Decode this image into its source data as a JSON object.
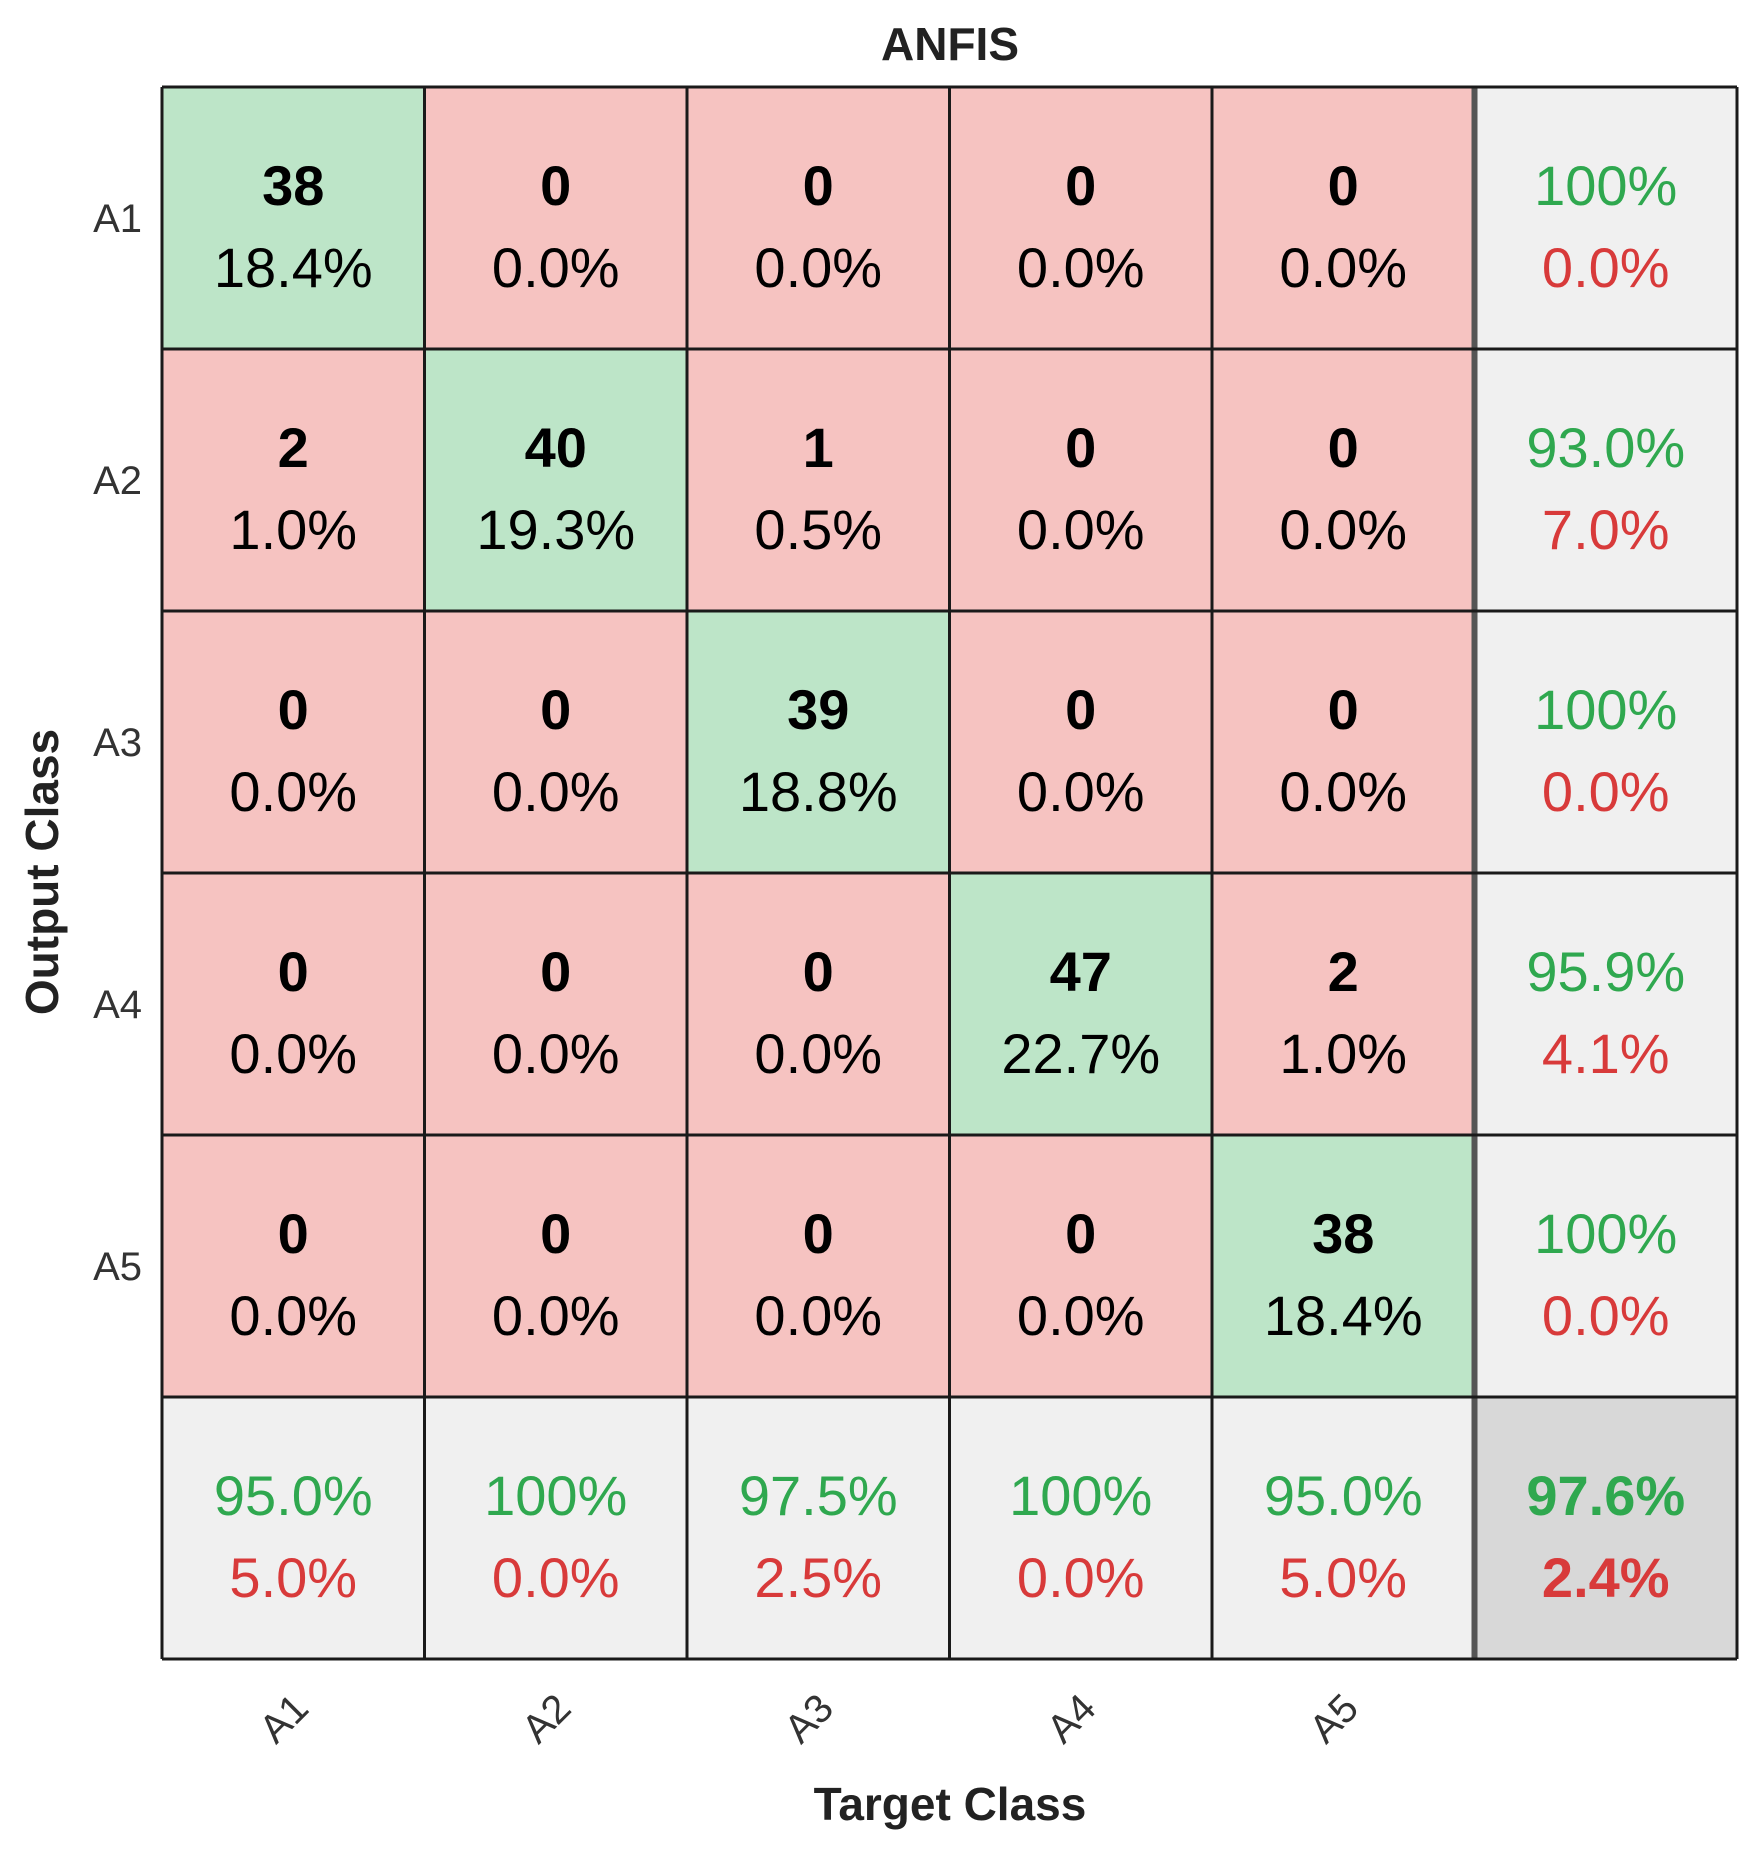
{
  "chart_data": {
    "type": "heatmap",
    "title": "ANFIS",
    "xlabel": "Target Class",
    "ylabel": "Output Class",
    "x_tick_labels": [
      "A1",
      "A2",
      "A3",
      "A4",
      "A5"
    ],
    "y_tick_labels": [
      "A1",
      "A2",
      "A3",
      "A4",
      "A5"
    ],
    "cells": [
      [
        {
          "count": "38",
          "pct": "18.4%"
        },
        {
          "count": "0",
          "pct": "0.0%"
        },
        {
          "count": "0",
          "pct": "0.0%"
        },
        {
          "count": "0",
          "pct": "0.0%"
        },
        {
          "count": "0",
          "pct": "0.0%"
        }
      ],
      [
        {
          "count": "2",
          "pct": "1.0%"
        },
        {
          "count": "40",
          "pct": "19.3%"
        },
        {
          "count": "1",
          "pct": "0.5%"
        },
        {
          "count": "0",
          "pct": "0.0%"
        },
        {
          "count": "0",
          "pct": "0.0%"
        }
      ],
      [
        {
          "count": "0",
          "pct": "0.0%"
        },
        {
          "count": "0",
          "pct": "0.0%"
        },
        {
          "count": "39",
          "pct": "18.8%"
        },
        {
          "count": "0",
          "pct": "0.0%"
        },
        {
          "count": "0",
          "pct": "0.0%"
        }
      ],
      [
        {
          "count": "0",
          "pct": "0.0%"
        },
        {
          "count": "0",
          "pct": "0.0%"
        },
        {
          "count": "0",
          "pct": "0.0%"
        },
        {
          "count": "47",
          "pct": "22.7%"
        },
        {
          "count": "2",
          "pct": "1.0%"
        }
      ],
      [
        {
          "count": "0",
          "pct": "0.0%"
        },
        {
          "count": "0",
          "pct": "0.0%"
        },
        {
          "count": "0",
          "pct": "0.0%"
        },
        {
          "count": "0",
          "pct": "0.0%"
        },
        {
          "count": "38",
          "pct": "18.4%"
        }
      ]
    ],
    "row_summary": [
      {
        "correct": "100%",
        "error": "0.0%"
      },
      {
        "correct": "93.0%",
        "error": "7.0%"
      },
      {
        "correct": "100%",
        "error": "0.0%"
      },
      {
        "correct": "95.9%",
        "error": "4.1%"
      },
      {
        "correct": "100%",
        "error": "0.0%"
      }
    ],
    "col_summary": [
      {
        "correct": "95.0%",
        "error": "5.0%"
      },
      {
        "correct": "100%",
        "error": "0.0%"
      },
      {
        "correct": "97.5%",
        "error": "2.5%"
      },
      {
        "correct": "100%",
        "error": "0.0%"
      },
      {
        "correct": "95.0%",
        "error": "5.0%"
      }
    ],
    "overall": {
      "correct": "97.6%",
      "error": "2.4%"
    },
    "colors": {
      "diagonal_cell": "#bde5c8",
      "offdiagonal_cell": "#f6c3c1",
      "summary_cell": "#f0f0f0",
      "overall_cell": "#d8d8d8",
      "correct_text": "#2fa84f",
      "error_text": "#d83a3a",
      "count_text": "#000000",
      "grid_line": "#1a1a1a",
      "summary_line": "#555555"
    }
  }
}
